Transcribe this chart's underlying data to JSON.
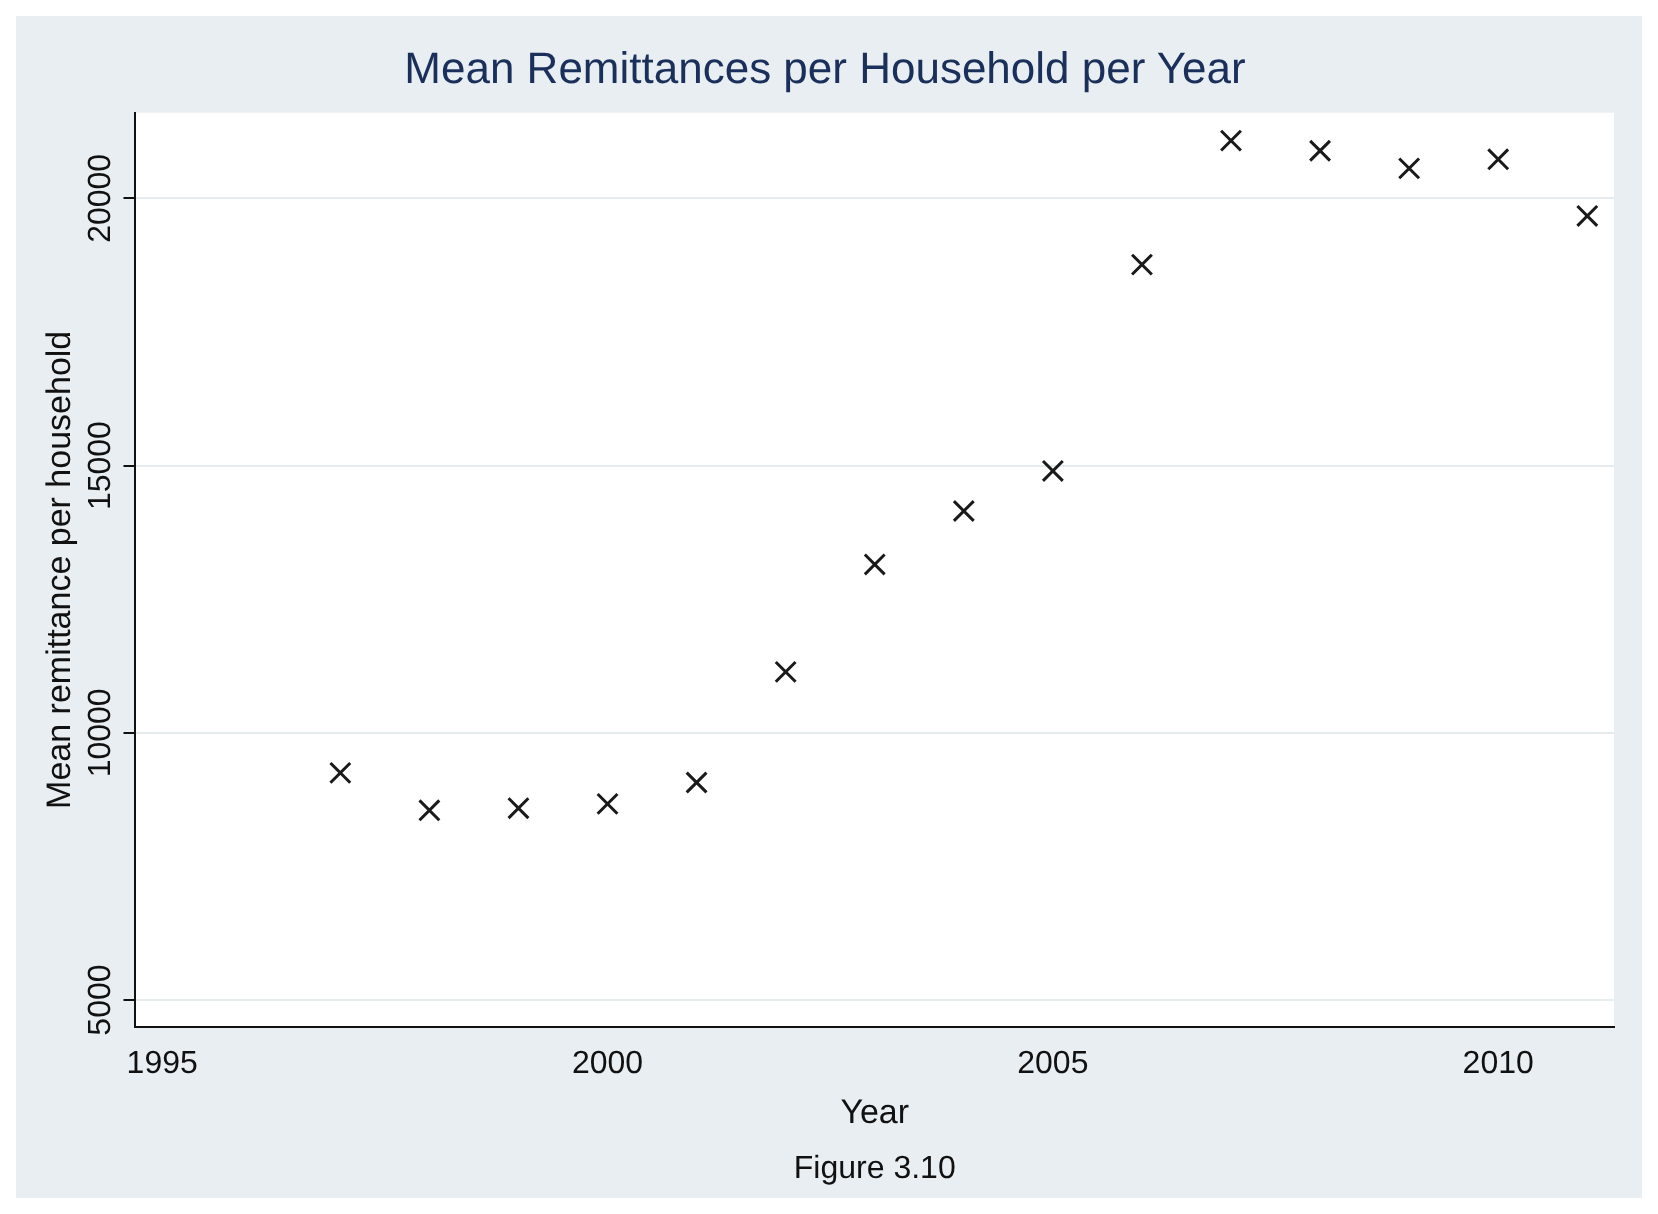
{
  "chart_data": {
    "type": "scatter",
    "title": "Mean Remittances per Household per Year",
    "xlabel": "Year",
    "ylabel": "Mean remittance per household",
    "annotations": [
      "Figure 3.10"
    ],
    "x": [
      1997,
      1998,
      1999,
      2000,
      2001,
      2002,
      2003,
      2004,
      2005,
      2006,
      2007,
      2008,
      2009,
      2010,
      2011
    ],
    "series": [
      {
        "color": "#1a1a1a",
        "values": [
          9250,
          8550,
          8590,
          8670,
          9070,
          11140,
          13150,
          14150,
          14900,
          18760,
          21080,
          20890,
          20560,
          20730,
          19670
        ]
      }
    ],
    "xlim": [
      1994.7,
      2011.3
    ],
    "xticks": [
      1995,
      2000,
      2005,
      2010
    ],
    "ylim": [
      4500,
      21600
    ],
    "yticks": [
      5000,
      10000,
      15000,
      20000
    ],
    "grid": "y",
    "legend": false,
    "marker": "cross"
  }
}
